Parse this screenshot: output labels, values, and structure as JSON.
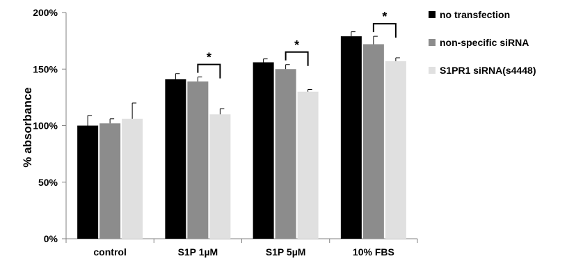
{
  "chart_data": {
    "type": "bar",
    "title": "",
    "xlabel": "",
    "ylabel": "% absorbance",
    "ylim": [
      0,
      200
    ],
    "yticks": [
      0,
      50,
      100,
      150,
      200
    ],
    "ytick_labels": [
      "0%",
      "50%",
      "100%",
      "150%",
      "200%"
    ],
    "categories": [
      "control",
      "S1P 1µM",
      "S1P 5µM",
      "10% FBS"
    ],
    "series": [
      {
        "name": "no transfection",
        "color": "#000000",
        "values": [
          100,
          141,
          156,
          179
        ],
        "errors": [
          9,
          5,
          3,
          4
        ]
      },
      {
        "name": "non-specific siRNA",
        "color": "#8c8c8c",
        "values": [
          102,
          139,
          150,
          172
        ],
        "errors": [
          4,
          4,
          4,
          7
        ]
      },
      {
        "name": "S1PR1 siRNA(s4448)",
        "color": "#e0e0e0",
        "values": [
          106,
          110,
          130,
          157
        ],
        "errors": [
          14,
          5,
          2,
          3
        ]
      }
    ],
    "significance": [
      {
        "category_index": 1,
        "between": [
          1,
          2
        ],
        "label": "*"
      },
      {
        "category_index": 2,
        "between": [
          1,
          2
        ],
        "label": "*"
      },
      {
        "category_index": 3,
        "between": [
          1,
          2
        ],
        "label": "*"
      }
    ],
    "legend_position": "top-right",
    "grid": false
  }
}
